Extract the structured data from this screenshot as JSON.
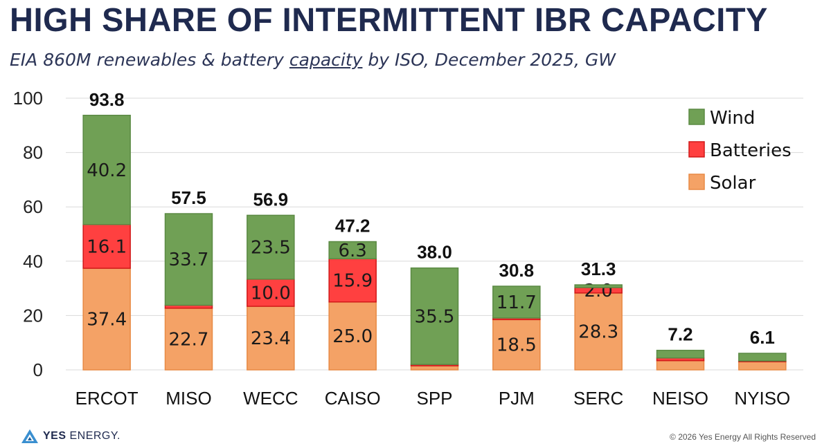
{
  "header": {
    "title": "HIGH SHARE OF INTERMITTENT IBR CAPACITY",
    "subtitle_pre": "EIA 860M renewables & battery ",
    "subtitle_underlined": "capacity",
    "subtitle_post": " by ISO, December 2025, GW"
  },
  "chart_data": {
    "type": "bar",
    "stacked": true,
    "categories": [
      "ERCOT",
      "MISO",
      "WECC",
      "CAISO",
      "SPP",
      "PJM",
      "SERC",
      "NEISO",
      "NYISO"
    ],
    "series": [
      {
        "name": "Solar",
        "color": "#f4a266",
        "values": [
          37.4,
          22.7,
          23.4,
          25.0,
          1.5,
          18.5,
          28.3,
          3.4,
          3.0
        ],
        "labels": [
          "37.4",
          "22.7",
          "23.4",
          "25.0",
          "",
          "18.5",
          "28.3",
          "",
          ""
        ]
      },
      {
        "name": "Batteries",
        "color": "#ff4040",
        "values": [
          16.1,
          1.1,
          10.0,
          15.9,
          0.5,
          0.6,
          2.0,
          1.0,
          0.3
        ],
        "labels": [
          "16.1",
          "",
          "10.0",
          "15.9",
          "",
          "",
          "2.0",
          "",
          ""
        ]
      },
      {
        "name": "Wind",
        "color": "#70a055",
        "values": [
          40.2,
          33.7,
          23.5,
          6.3,
          35.5,
          11.7,
          1.0,
          2.8,
          2.8
        ],
        "labels": [
          "40.2",
          "33.7",
          "23.5",
          "6.3",
          "35.5",
          "11.7",
          "",
          "",
          ""
        ]
      }
    ],
    "totals": [
      "93.8",
      "57.5",
      "56.9",
      "47.2",
      "38.0",
      "30.8",
      "31.3",
      "7.2",
      "6.1"
    ],
    "ylim": [
      0,
      100
    ],
    "yticks": [
      "0",
      "20",
      "40",
      "60",
      "80",
      "100"
    ],
    "grid": true,
    "legend": {
      "position": "top-right",
      "order": [
        "Wind",
        "Batteries",
        "Solar"
      ]
    }
  },
  "footer": {
    "logo_bold": "YES",
    "logo_light": " ENERGY.",
    "copyright": "© 2026 Yes Energy All Rights Reserved"
  },
  "colors": {
    "title": "#1f2a4f",
    "grid": "#d9d9d9",
    "logo_blue": "#3a8fd0"
  }
}
